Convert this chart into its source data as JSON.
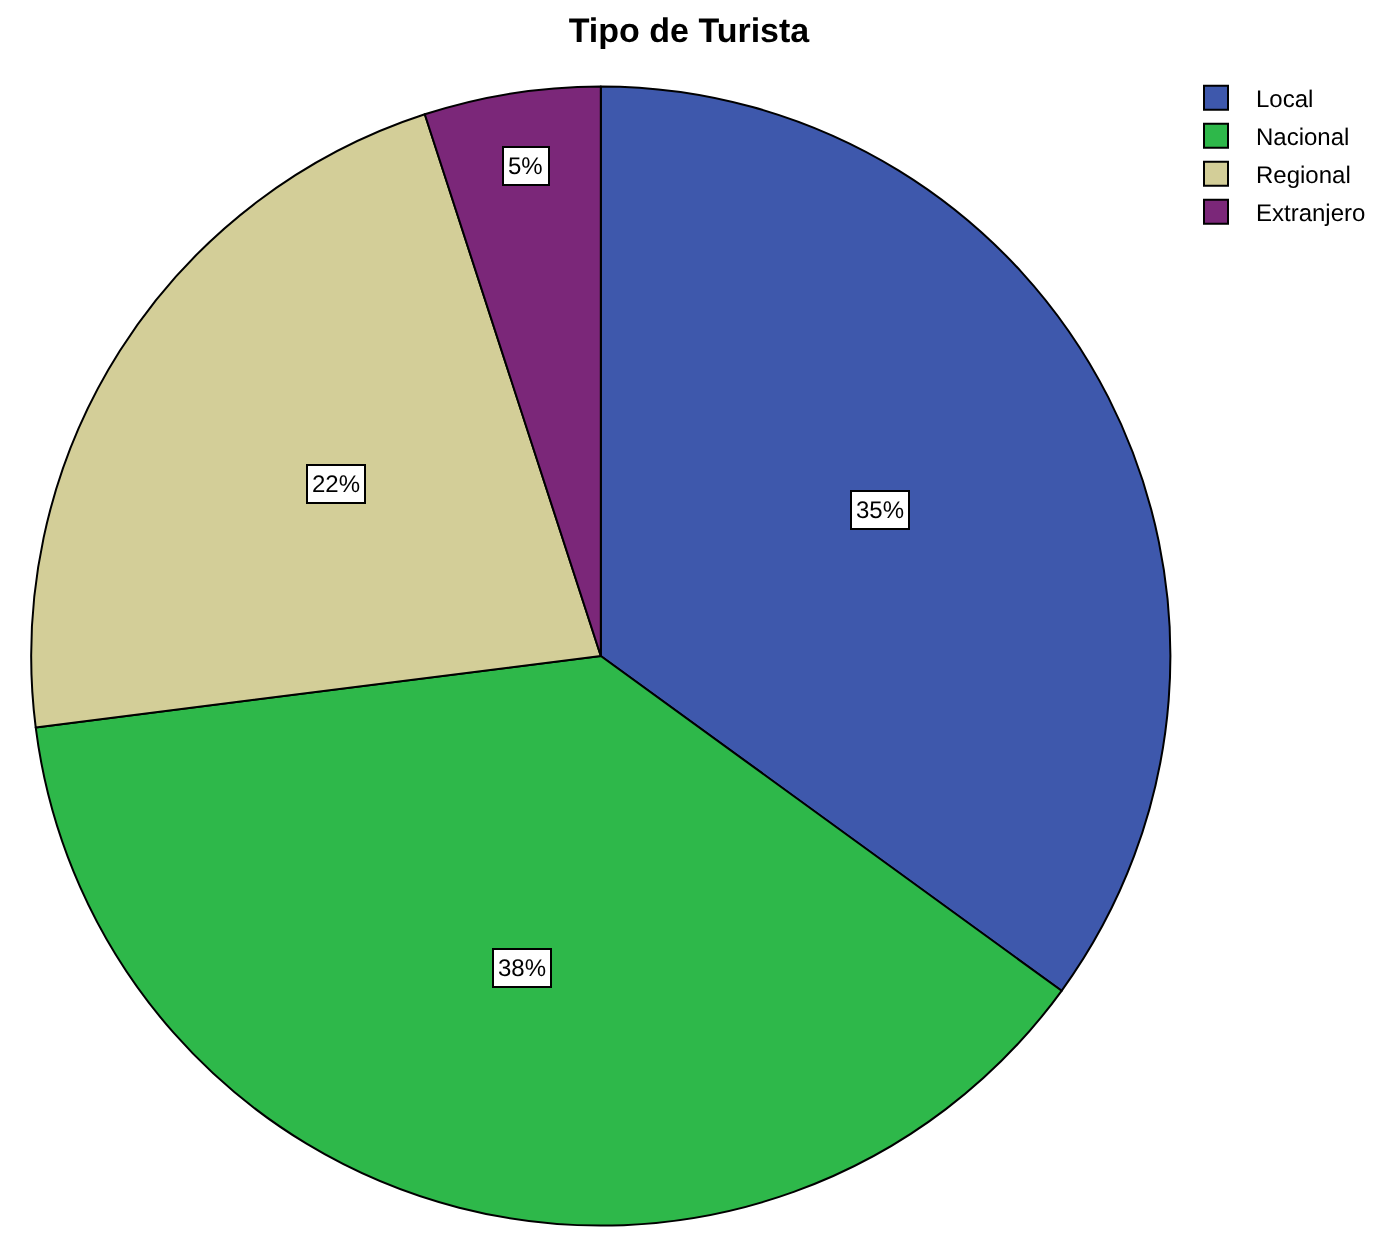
{
  "chart_data": {
    "type": "pie",
    "title": "Tipo de Turista",
    "categories": [
      "Local",
      "Nacional",
      "Regional",
      "Extranjero"
    ],
    "values": [
      35,
      38,
      22,
      5
    ],
    "value_labels": [
      "35%",
      "38%",
      "22%",
      "5%"
    ],
    "colors": [
      "#3e58ac",
      "#2eb84a",
      "#d3ce98",
      "#7b2779"
    ],
    "legend": "top right"
  }
}
